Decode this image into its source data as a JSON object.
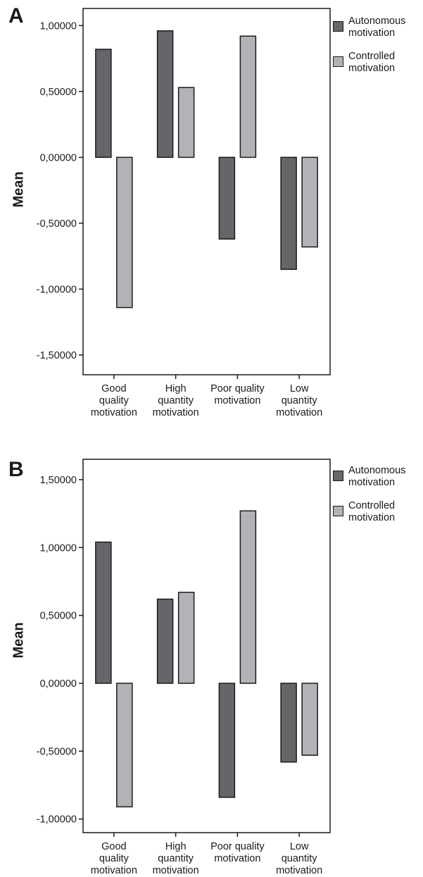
{
  "chart_data": [
    {
      "panel_label": "A",
      "type": "bar",
      "ylabel": "Mean",
      "xlabel": "",
      "categories": [
        [
          "Good",
          "quality",
          "motivation"
        ],
        [
          "High",
          "quantity",
          "motivation"
        ],
        [
          "Poor quality",
          "motivation"
        ],
        [
          "Low",
          "quantity",
          "motivation"
        ]
      ],
      "series": [
        {
          "name": [
            "Autonomous",
            "motivation"
          ],
          "color": "#66666a",
          "values": [
            0.82,
            0.96,
            -0.62,
            -0.85
          ]
        },
        {
          "name": [
            "Controlled",
            "motivation"
          ],
          "color": "#b3b3b7",
          "values": [
            -1.14,
            0.53,
            0.92,
            -0.68
          ]
        }
      ],
      "ylim": [
        -1.65,
        1.13
      ],
      "yticks": [
        1.0,
        0.5,
        0.0,
        -0.5,
        -1.0,
        -1.5
      ],
      "ytick_labels": [
        "1,00000",
        "0,50000",
        "0,00000",
        "-0,50000",
        "-1,00000",
        "-1,50000"
      ],
      "grid": false,
      "legend_position": "right"
    },
    {
      "panel_label": "B",
      "type": "bar",
      "ylabel": "Mean",
      "xlabel": "",
      "categories": [
        [
          "Good",
          "quality",
          "motivation"
        ],
        [
          "High",
          "quantity",
          "motivation"
        ],
        [
          "Poor quality",
          "motivation"
        ],
        [
          "Low",
          "quantity",
          "motivation"
        ]
      ],
      "series": [
        {
          "name": [
            "Autonomous",
            "motivation"
          ],
          "color": "#66666a",
          "values": [
            1.04,
            0.62,
            -0.84,
            -0.58
          ]
        },
        {
          "name": [
            "Controlled",
            "motivation"
          ],
          "color": "#b3b3b7",
          "values": [
            -0.91,
            0.67,
            1.27,
            -0.53
          ]
        }
      ],
      "ylim": [
        -1.1,
        1.65
      ],
      "yticks": [
        1.5,
        1.0,
        0.5,
        0.0,
        -0.5,
        -1.0
      ],
      "ytick_labels": [
        "1,50000",
        "1,00000",
        "0,50000",
        "0,00000",
        "-0,50000",
        "-1,00000"
      ],
      "grid": false,
      "legend_position": "right"
    }
  ]
}
